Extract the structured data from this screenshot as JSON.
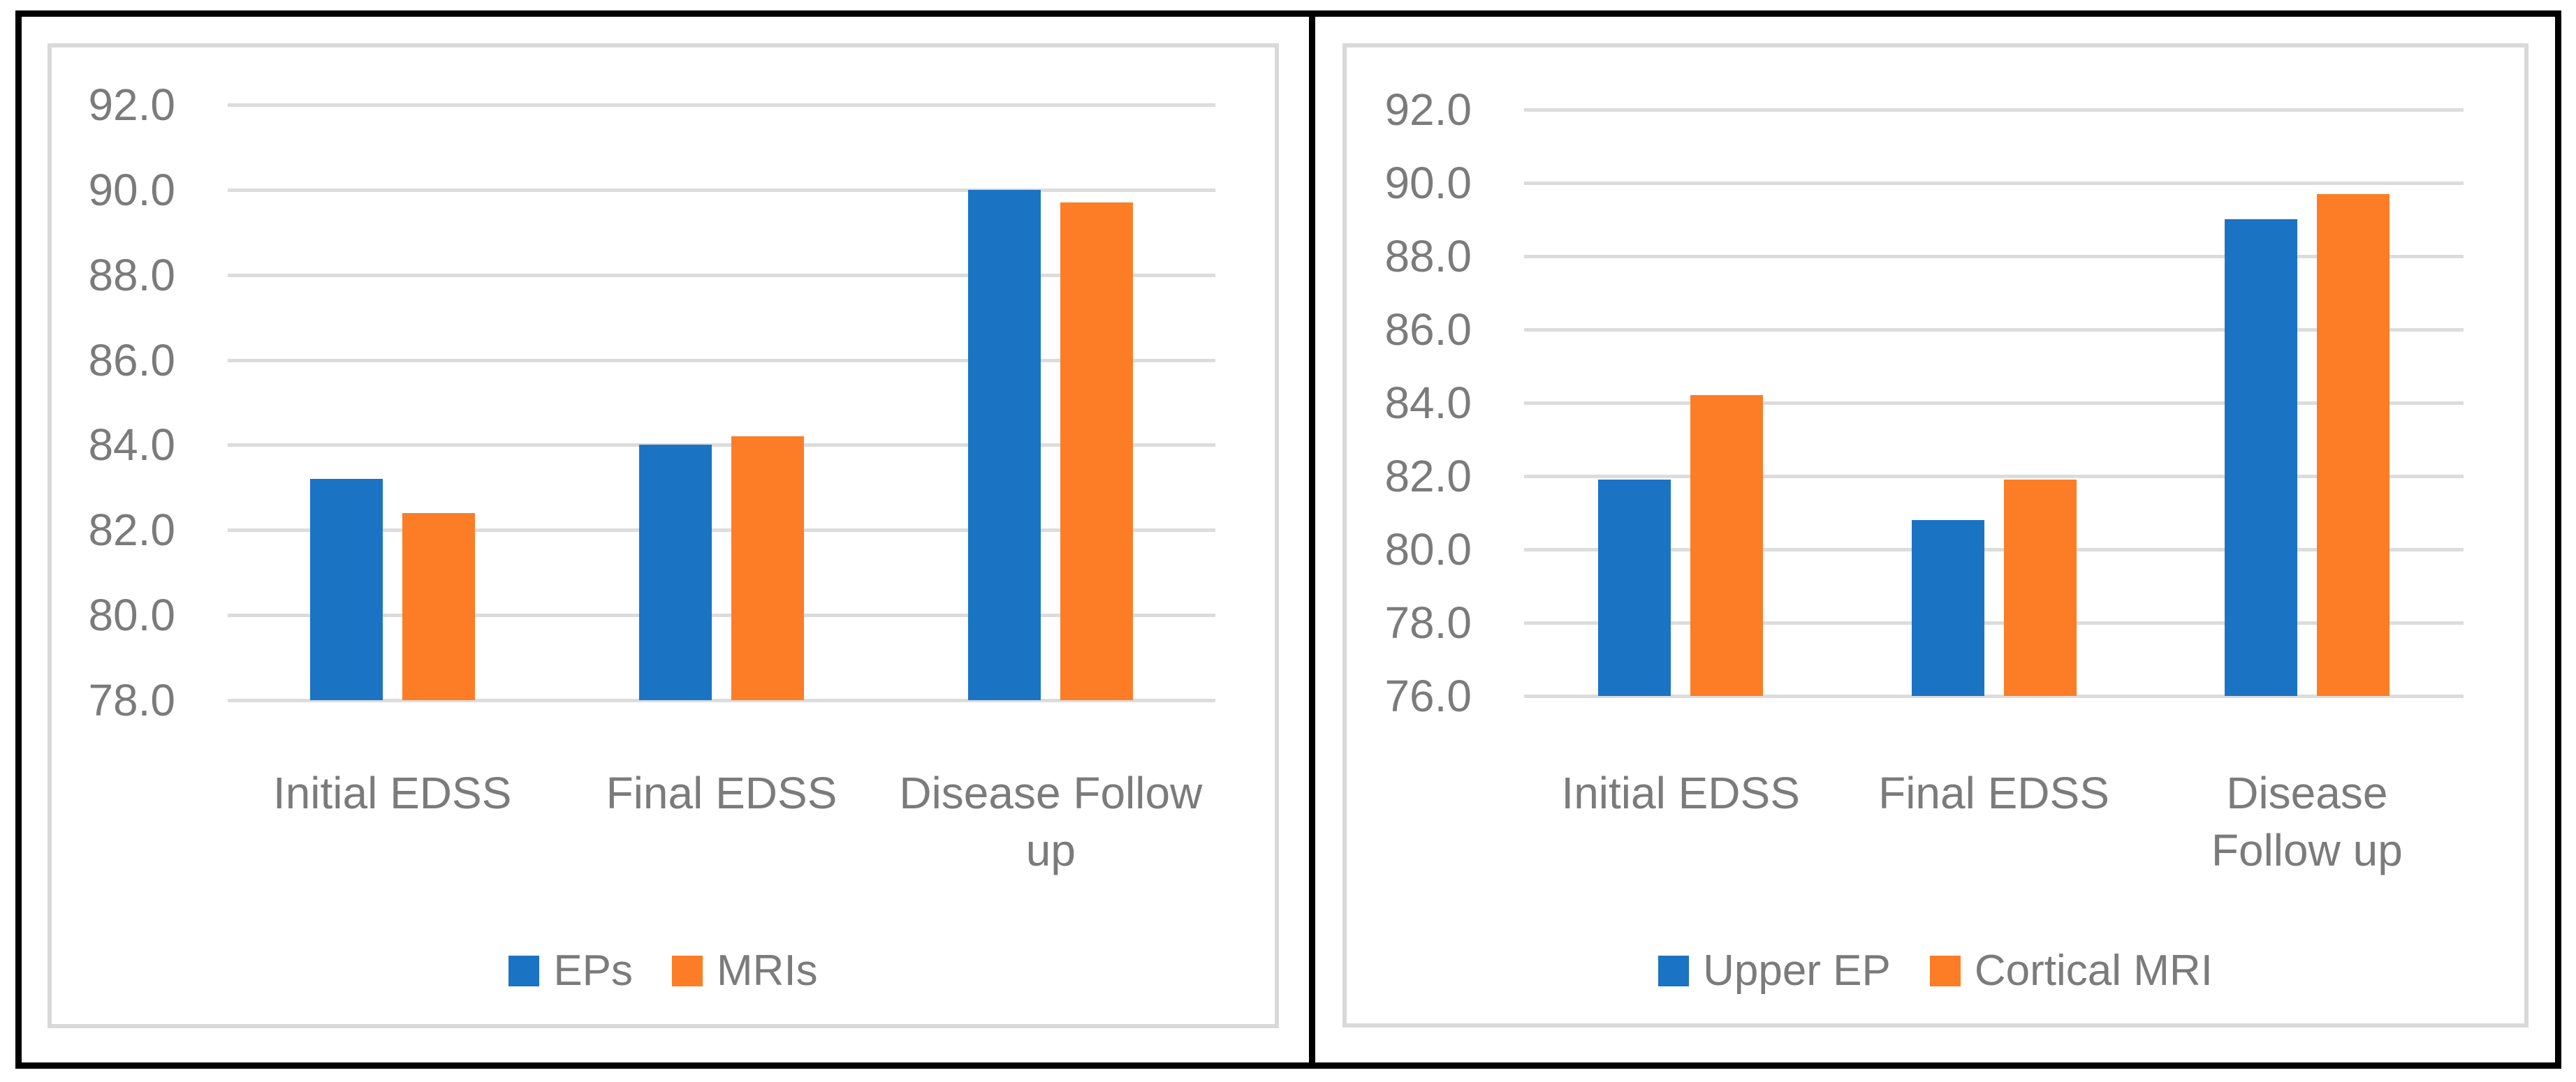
{
  "figure": {
    "description_visible_text_only": "Two side-by-side clustered bar charts inside a black-bordered frame",
    "accent_colors": {
      "series_blue": "#1B73C4",
      "series_orange": "#FC7D26",
      "grid_color": "#DCDCDC",
      "frame_border_color": "#D9D9D9",
      "text_color": "#7B7B7B",
      "outer_border_color": "#000000"
    }
  },
  "chart_data": [
    {
      "type": "bar",
      "title": "",
      "xlabel": "",
      "ylabel": "",
      "categories": [
        "Initial EDSS",
        "Final EDSS",
        "Disease Follow up"
      ],
      "category_label_lines": [
        [
          "Initial EDSS"
        ],
        [
          "Final EDSS"
        ],
        [
          "Disease Follow",
          "up"
        ]
      ],
      "series": [
        {
          "name": "EPs",
          "color": "#1B73C4",
          "values": [
            83.2,
            84.0,
            90.0
          ]
        },
        {
          "name": "MRIs",
          "color": "#FC7D26",
          "values": [
            82.4,
            84.2,
            89.7
          ]
        }
      ],
      "ylim": [
        78.0,
        92.0
      ],
      "ytick_step": 2.0,
      "ytick_labels": [
        "92.0",
        "90.0",
        "88.0",
        "86.0",
        "84.0",
        "82.0",
        "80.0",
        "78.0"
      ],
      "grid": true,
      "legend_position": "bottom",
      "legend_entries": [
        "EPs",
        "MRIs"
      ]
    },
    {
      "type": "bar",
      "title": "",
      "xlabel": "",
      "ylabel": "",
      "categories": [
        "Initial EDSS",
        "Final EDSS",
        "Disease Follow up"
      ],
      "category_label_lines": [
        [
          "Initial EDSS"
        ],
        [
          "Final EDSS"
        ],
        [
          "Disease",
          "Follow up"
        ]
      ],
      "series": [
        {
          "name": "Upper EP",
          "color": "#1B73C4",
          "values": [
            81.9,
            80.8,
            89.0
          ]
        },
        {
          "name": "Cortical MRI",
          "color": "#FC7D26",
          "values": [
            84.2,
            81.9,
            89.7
          ]
        }
      ],
      "ylim": [
        76.0,
        92.0
      ],
      "ytick_step": 2.0,
      "ytick_labels": [
        "92.0",
        "90.0",
        "88.0",
        "86.0",
        "84.0",
        "82.0",
        "80.0",
        "78.0",
        "76.0"
      ],
      "grid": true,
      "legend_position": "bottom",
      "legend_entries": [
        "Upper EP",
        "Cortical MRI"
      ]
    }
  ]
}
